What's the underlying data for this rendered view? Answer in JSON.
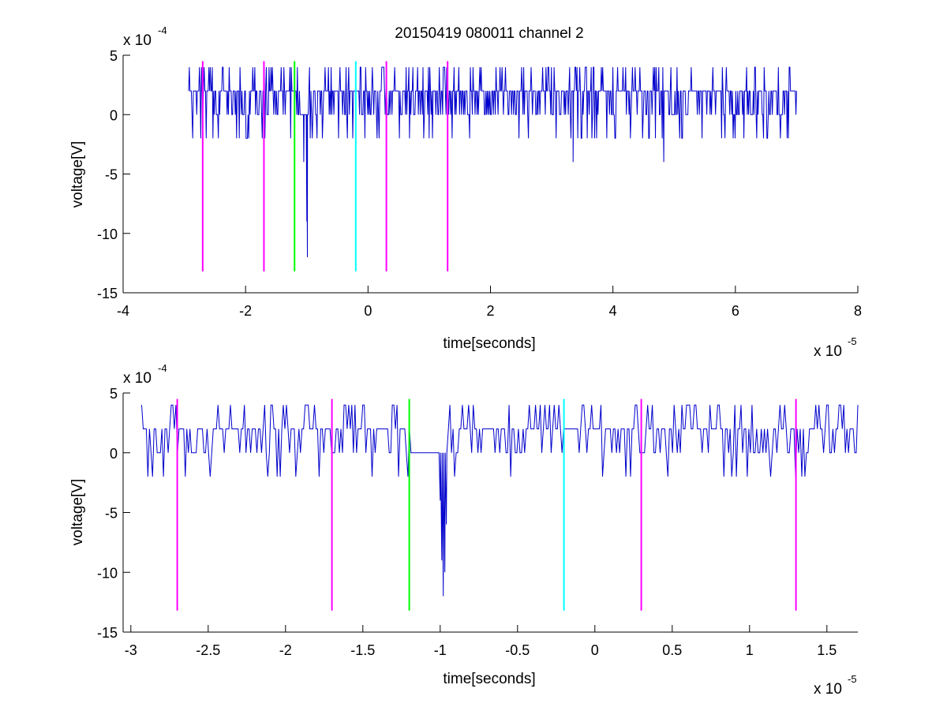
{
  "chart_data": [
    {
      "type": "line",
      "title": "20150419 080011 channel 2",
      "xlabel": "time[seconds]",
      "ylabel": "voltage[V]",
      "x_exponent_label": "x 10",
      "x_exponent": "-5",
      "y_exponent_label": "x 10",
      "y_exponent": "-4",
      "xlim": [
        -4,
        8
      ],
      "ylim": [
        -15,
        5
      ],
      "x_unit_scale": 1e-05,
      "y_unit_scale": 0.0001,
      "xticks": [
        "-4",
        "-2",
        "0",
        "2",
        "4",
        "6",
        "8"
      ],
      "yticks": [
        "-15",
        "-10",
        "-5",
        "0",
        "5"
      ],
      "signal": {
        "color": "#0000cc",
        "x_start": -2.93,
        "x_end": 7.0,
        "levels": [
          -4,
          -2,
          0,
          2,
          4
        ],
        "spikes": [
          {
            "x": -0.99,
            "y": -12
          },
          {
            "x": -1.0,
            "y": -9
          },
          {
            "x": -1.05,
            "y": -4
          },
          {
            "x": 3.35,
            "y": -4
          },
          {
            "x": 4.83,
            "y": -4
          }
        ]
      },
      "markers": [
        {
          "x": -2.7,
          "color": "#ff00ff"
        },
        {
          "x": -1.7,
          "color": "#ff00ff"
        },
        {
          "x": -1.2,
          "color": "#00ff00"
        },
        {
          "x": -0.2,
          "color": "#00ffff"
        },
        {
          "x": 0.3,
          "color": "#ff00ff"
        },
        {
          "x": 1.3,
          "color": "#ff00ff"
        }
      ],
      "marker_range": [
        -13.2,
        4.5
      ]
    },
    {
      "type": "line",
      "title": "",
      "xlabel": "time[seconds]",
      "ylabel": "voltage[V]",
      "x_exponent_label": "x 10",
      "x_exponent": "-5",
      "y_exponent_label": "x 10",
      "y_exponent": "-4",
      "xlim": [
        -3.05,
        1.7
      ],
      "ylim": [
        -15,
        5
      ],
      "x_unit_scale": 1e-05,
      "y_unit_scale": 0.0001,
      "xticks": [
        "-3",
        "-2.5",
        "-2",
        "-1.5",
        "-1",
        "-0.5",
        "0",
        "0.5",
        "1",
        "1.5"
      ],
      "yticks": [
        "-15",
        "-10",
        "-5",
        "0",
        "5"
      ],
      "signal": {
        "color": "#0000cc",
        "x_start": -2.93,
        "x_end": 1.7,
        "levels": [
          -2,
          0,
          2,
          4
        ],
        "spikes": [
          {
            "x": -1.0,
            "y": -4
          },
          {
            "x": -0.99,
            "y": -9
          },
          {
            "x": -0.98,
            "y": -12
          },
          {
            "x": -0.97,
            "y": -10
          },
          {
            "x": -0.96,
            "y": -6
          }
        ]
      },
      "markers": [
        {
          "x": -2.7,
          "color": "#ff00ff"
        },
        {
          "x": -1.7,
          "color": "#ff00ff"
        },
        {
          "x": -1.2,
          "color": "#00ff00"
        },
        {
          "x": -0.2,
          "color": "#00ffff"
        },
        {
          "x": 0.3,
          "color": "#ff00ff"
        },
        {
          "x": 1.3,
          "color": "#ff00ff"
        }
      ],
      "marker_range": [
        -13.2,
        4.5
      ]
    }
  ]
}
